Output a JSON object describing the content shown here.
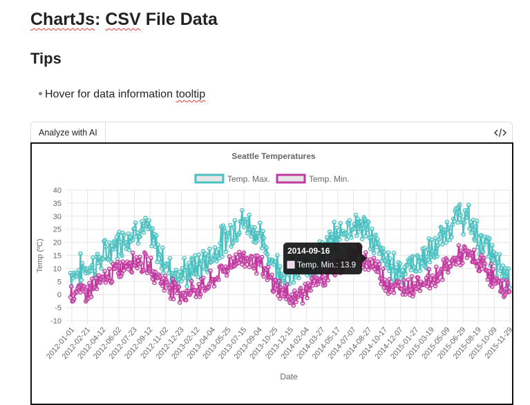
{
  "page": {
    "title_part1": "ChartJs",
    "title_colon": ":",
    "title_part2": "CSV",
    "title_part3": "File Data",
    "tips_heading": "Tips",
    "tip_text": "Hover for data information",
    "tip_word": "tooltip"
  },
  "toolbar": {
    "ai_button_label": "Analyze with AI",
    "code_icon": "code-icon"
  },
  "colors": {
    "max_line": "#4bc0c0",
    "min_line": "#c0399f",
    "grid": "#e5e5e5",
    "tooltip_bg": "#1b1b1b"
  },
  "chart_data": {
    "type": "line",
    "title": "Seattle Temperatures",
    "xlabel": "Date",
    "ylabel": "Temp (ºC)",
    "ylim": [
      -10,
      40
    ],
    "yticks": [
      40,
      35,
      30,
      25,
      20,
      15,
      10,
      5,
      0,
      -5,
      -10
    ],
    "x_tick_labels": [
      "2012-01-01",
      "2012-02-21",
      "2012-04-12",
      "2012-06-02",
      "2012-07-23",
      "2012-09-12",
      "2012-11-02",
      "2012-12-23",
      "2013-02-12",
      "2013-04-04",
      "2013-05-25",
      "2013-07-15",
      "2013-09-04",
      "2013-10-25",
      "2013-12-15",
      "2014-02-04",
      "2014-03-27",
      "2014-05-17",
      "2014-07-07",
      "2014-08-27",
      "2014-10-17",
      "2014-12-07",
      "2015-01-27",
      "2015-03-19",
      "2015-05-09",
      "2015-06-29",
      "2015-08-19",
      "2015-10-09",
      "2015-11-29"
    ],
    "legend_position": "top",
    "series": [
      {
        "name": "Temp. Max.",
        "color": "#4bc0c0",
        "monthly_approx": [
          {
            "year": 2012,
            "values": [
              8,
              10,
              11,
              14,
              18,
              21,
              23,
              26,
              24,
              17,
              11,
              8
            ]
          },
          {
            "year": 2013,
            "values": [
              8,
              10,
              12,
              15,
              20,
              24,
              28,
              27,
              23,
              16,
              11,
              8
            ]
          },
          {
            "year": 2014,
            "values": [
              9,
              9,
              12,
              16,
              20,
              23,
              27,
              27,
              24,
              18,
              12,
              10
            ]
          },
          {
            "year": 2015,
            "values": [
              10,
              12,
              14,
              16,
              21,
              27,
              30,
              28,
              22,
              18,
              11,
              8
            ]
          }
        ]
      },
      {
        "name": "Temp. Min.",
        "color": "#c0399f",
        "monthly_approx": [
          {
            "year": 2012,
            "values": [
              1,
              1,
              3,
              5,
              8,
              10,
              13,
              13,
              11,
              7,
              4,
              2
            ]
          },
          {
            "year": 2013,
            "values": [
              0,
              2,
              3,
              5,
              9,
              12,
              14,
              14,
              12,
              7,
              3,
              0
            ]
          },
          {
            "year": 2014,
            "values": [
              -1,
              1,
              4,
              6,
              9,
              12,
              14,
              15,
              13,
              10,
              5,
              2
            ]
          },
          {
            "year": 2015,
            "values": [
              3,
              4,
              5,
              6,
              9,
              12,
              15,
              15,
              12,
              10,
              4,
              2
            ]
          }
        ]
      }
    ],
    "tooltip": {
      "date": "2014-09-16",
      "series": "Temp. Min.",
      "value": 13.9,
      "label": "Temp. Min.: 13.9"
    }
  }
}
